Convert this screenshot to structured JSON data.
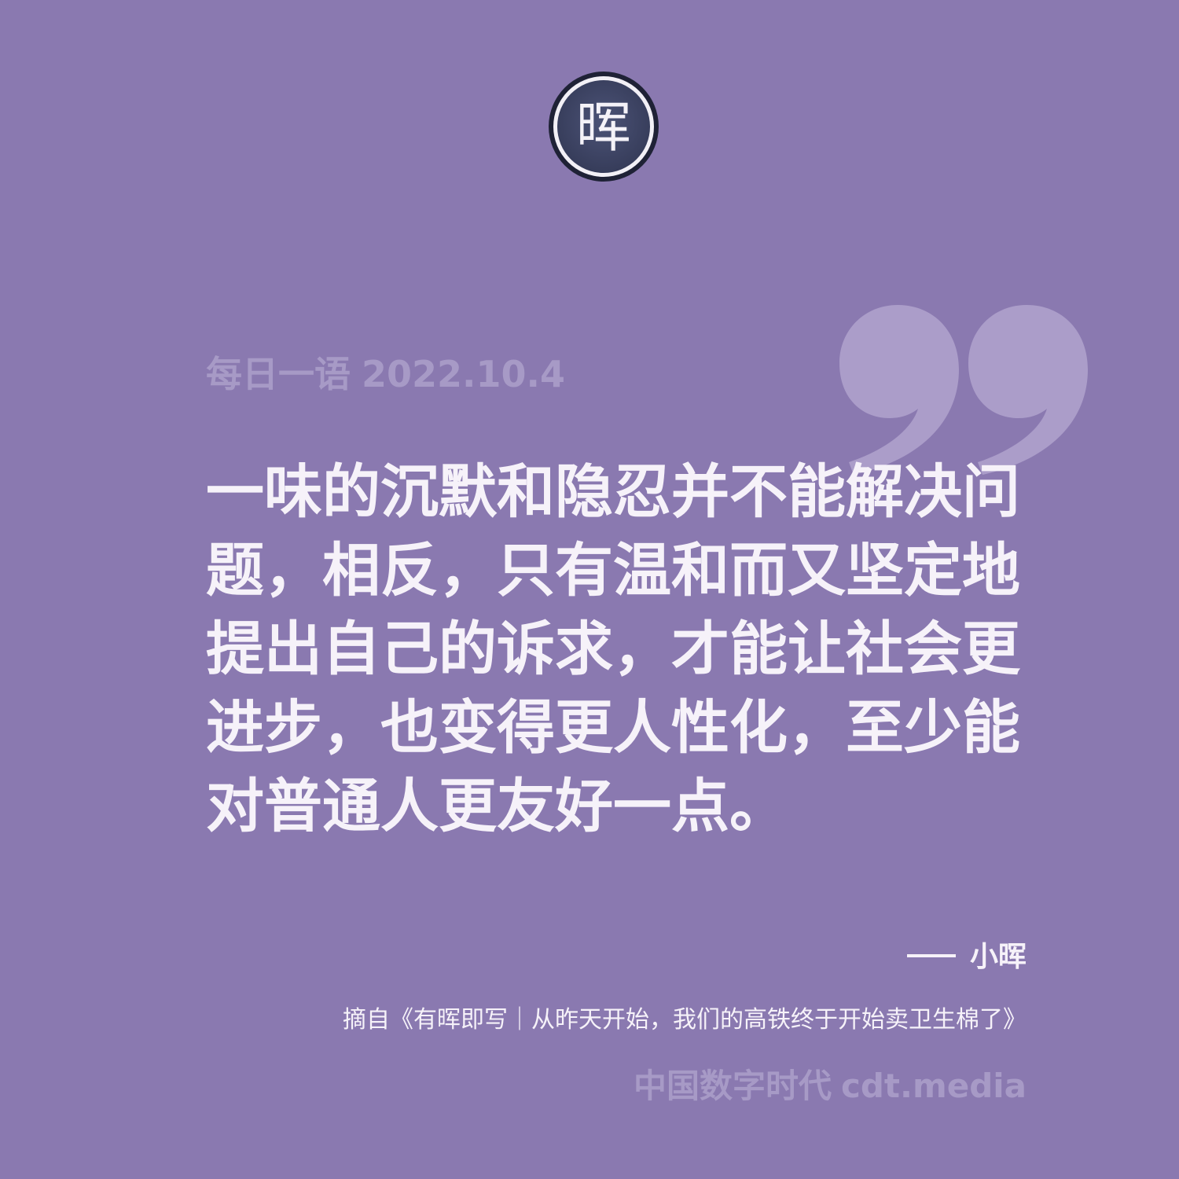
{
  "header": {
    "title": "每日一语",
    "date": "2022.10.4"
  },
  "quote": {
    "lines": [
      "一味的沉默和隐忍并不能解决问",
      "题，相反，只有温和而又坚定地",
      "提出自己的诉求，才能让社会更",
      "进步，也变得更人性化，至少能",
      "对普通人更友好一点。"
    ]
  },
  "author": {
    "name": "小晖"
  },
  "source": {
    "text": "摘自《有晖即写｜从昨天开始，我们的高铁终于开始卖卫生棉了》"
  },
  "footer": {
    "brand": "中国数字时代",
    "domain": "cdt.media"
  },
  "logo": {
    "glyph": "晖"
  },
  "colors": {
    "background": "#8a79b0",
    "quote_text": "#f6f2f9",
    "muted_text": "#a79ac6",
    "quote_mark": "#ab9dc9",
    "logo_fill": "#3f4565"
  },
  "icons": {
    "logo": "circle-seal-logo-icon",
    "quote": "closing-quote-icon"
  }
}
